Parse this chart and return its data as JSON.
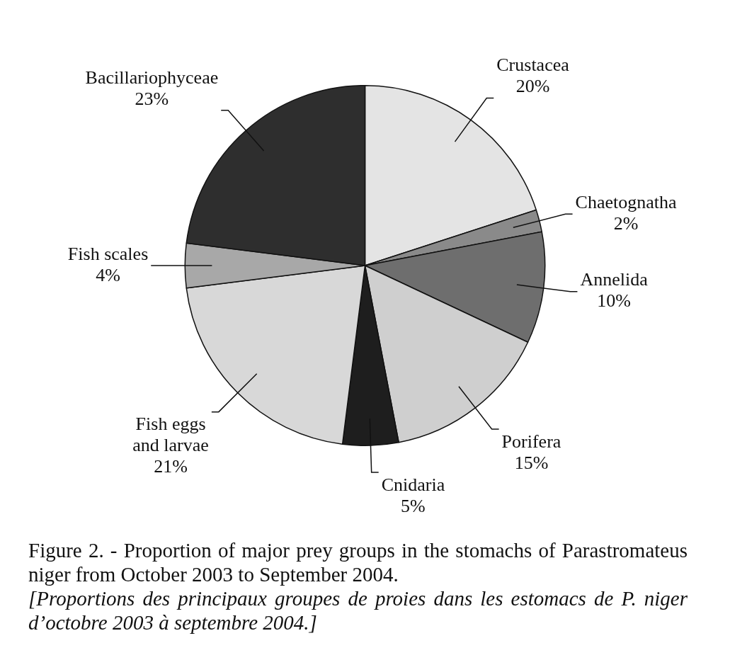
{
  "chart_data": {
    "type": "pie",
    "categories": [
      "Crustacea",
      "Chaetognatha",
      "Annelida",
      "Porifera",
      "Cnidaria",
      "Fish eggs and larvae",
      "Fish scales",
      "Bacillariophyceae"
    ],
    "values": [
      20,
      2,
      10,
      15,
      5,
      21,
      4,
      23
    ],
    "value_labels": [
      "20%",
      "2%",
      "10%",
      "15%",
      "5%",
      "21%",
      "4%",
      "23%"
    ],
    "colors": [
      "#e4e4e4",
      "#8a8a8a",
      "#6e6e6e",
      "#cfcfcf",
      "#1e1e1e",
      "#d8d8d8",
      "#a8a8a8",
      "#2e2e2e"
    ],
    "legend": false,
    "annotations": [
      "Figure 2. - Proportion of major prey groups in the stomachs of Parastromateus niger from October 2003 to September 2004.",
      "[Proportions des principaux groupes de proies dans les estomacs de P. niger d’octobre 2003 à septembre 2004.]"
    ]
  }
}
